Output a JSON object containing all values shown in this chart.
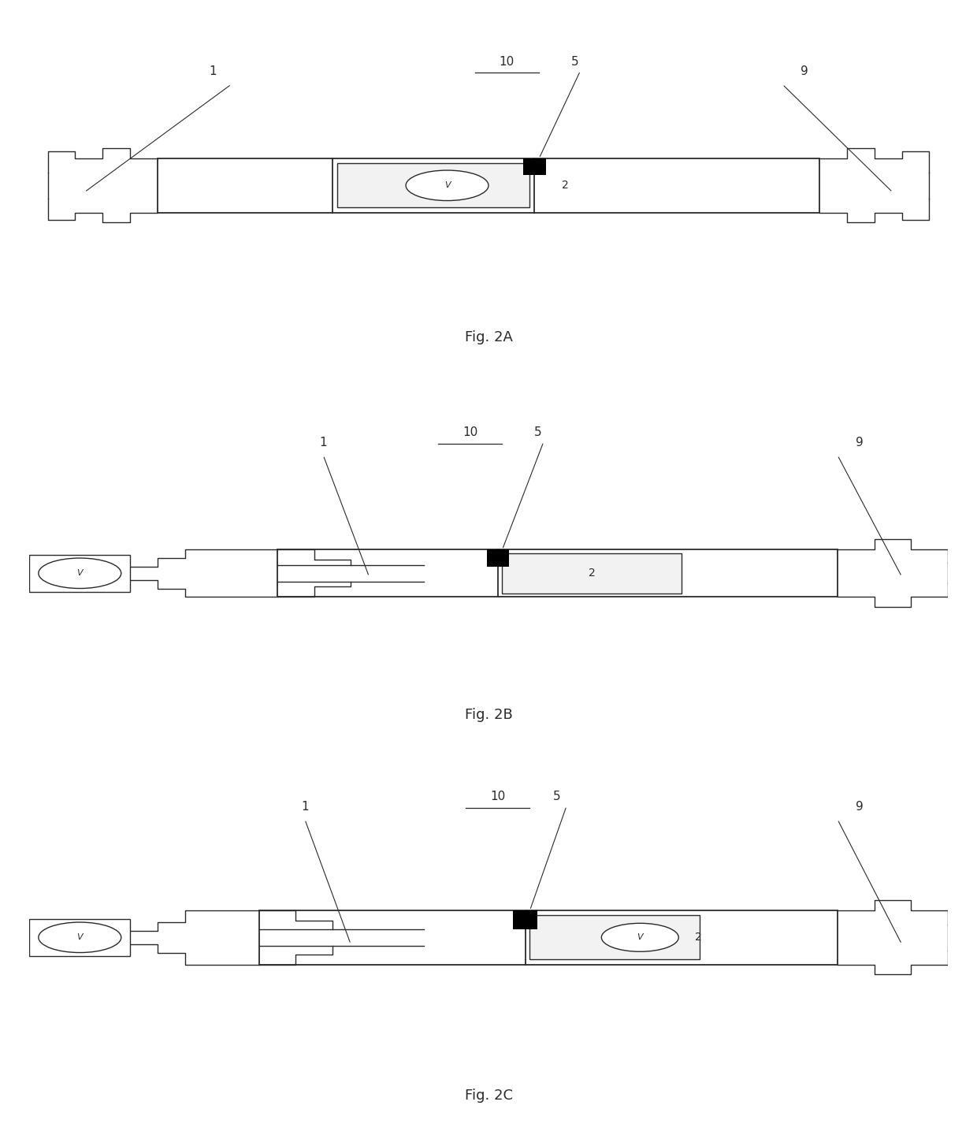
{
  "bg_color": "#ffffff",
  "line_color": "#2a2a2a",
  "fig_labels": [
    "Fig. 2A",
    "Fig. 2B",
    "Fig. 2C"
  ]
}
